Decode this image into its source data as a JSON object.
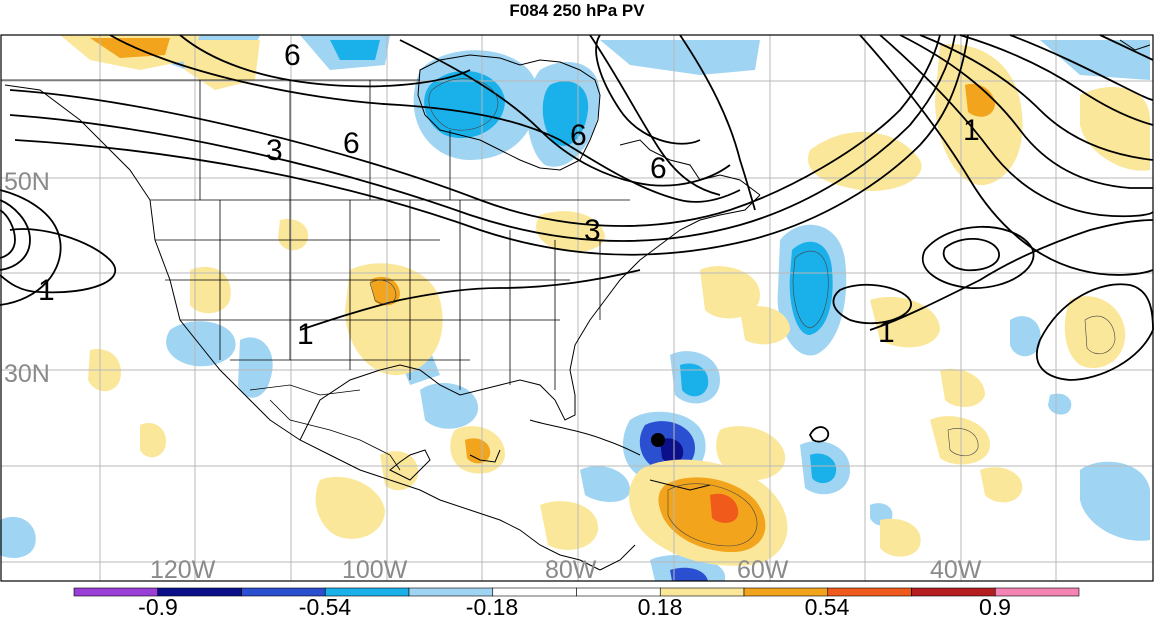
{
  "title": "F084 250 hPa PV",
  "longitude_labels": [
    "120W",
    "100W",
    "80W",
    "60W",
    "40W"
  ],
  "latitude_labels": [
    "50N",
    "30N"
  ],
  "contour_labels": [
    "6",
    "3",
    "6",
    "6",
    "6",
    "3",
    "1",
    "1",
    "1",
    "1"
  ],
  "colorbar": {
    "colors": [
      "#9a3fd6",
      "#0b0f8a",
      "#2a4fd0",
      "#1ab0ea",
      "#9fd4f2",
      "#ffffff",
      "#ffffff",
      "#fbe79a",
      "#f2a41c",
      "#f05a1a",
      "#b41e20",
      "#f484b4"
    ],
    "tick_labels": [
      "-0.9",
      "-0.54",
      "-0.18",
      "0.18",
      "0.54",
      "0.9"
    ]
  },
  "marker": {
    "type": "filled-circle",
    "color": "#000000"
  }
}
